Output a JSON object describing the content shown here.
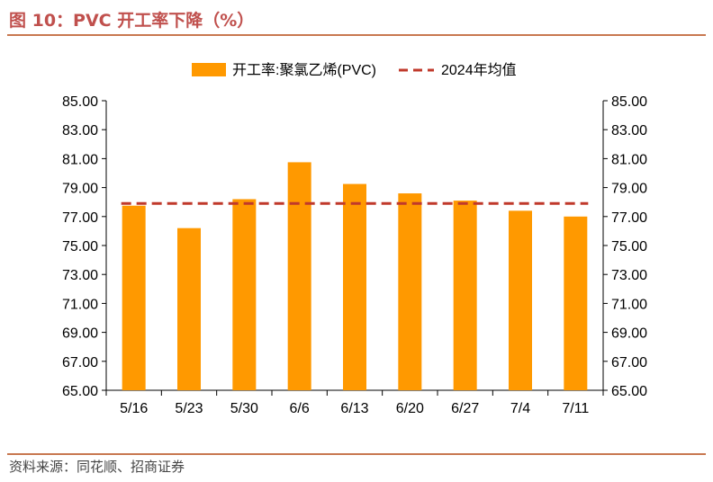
{
  "figure": {
    "title": "图 10：PVC 开工率下降（%）",
    "source": "资料来源：同花顺、招商证券"
  },
  "colors": {
    "title": "#c0504d",
    "bar": "#ff9900",
    "avg_line": "#c0392b",
    "rule": "#c87850"
  },
  "chart_data": {
    "type": "bar",
    "categories": [
      "5/16",
      "5/23",
      "5/30",
      "6/6",
      "6/13",
      "6/20",
      "6/27",
      "7/4",
      "7/11"
    ],
    "series": [
      {
        "name": "开工率:聚氯乙烯(PVC)",
        "type": "bar",
        "values": [
          77.75,
          76.2,
          78.2,
          80.75,
          79.25,
          78.6,
          78.1,
          77.4,
          77.0
        ]
      },
      {
        "name": "2024年均值",
        "type": "line",
        "style": "dashed",
        "values": [
          77.9,
          77.9,
          77.9,
          77.9,
          77.9,
          77.9,
          77.9,
          77.9,
          77.9
        ]
      }
    ],
    "ylim": [
      65,
      85
    ],
    "yticks": [
      "65.00",
      "67.00",
      "69.00",
      "71.00",
      "73.00",
      "75.00",
      "77.00",
      "79.00",
      "81.00",
      "83.00",
      "85.00"
    ],
    "y2ticks": [
      "65.00",
      "67.00",
      "69.00",
      "71.00",
      "73.00",
      "75.00",
      "77.00",
      "79.00",
      "81.00",
      "83.00",
      "85.00"
    ],
    "legend_position": "top",
    "grid": false
  }
}
